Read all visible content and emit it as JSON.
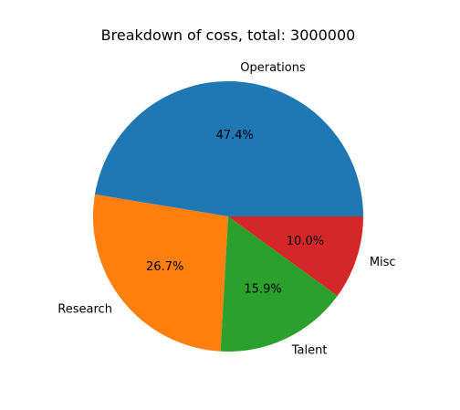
{
  "chart_data": {
    "type": "pie",
    "title": "Breakdown of coss, total: 3000000",
    "categories": [
      "Operations",
      "Research",
      "Talent",
      "Misc"
    ],
    "values": [
      47.4,
      26.7,
      15.9,
      10.0
    ],
    "percent_labels": [
      "47.4%",
      "26.7%",
      "15.9%",
      "10.0%"
    ],
    "colors": [
      "#1f77b4",
      "#ff7f0e",
      "#2ca02c",
      "#d62728"
    ],
    "start_angle_deg": 0,
    "direction": "counterclockwise",
    "legend": "none"
  }
}
